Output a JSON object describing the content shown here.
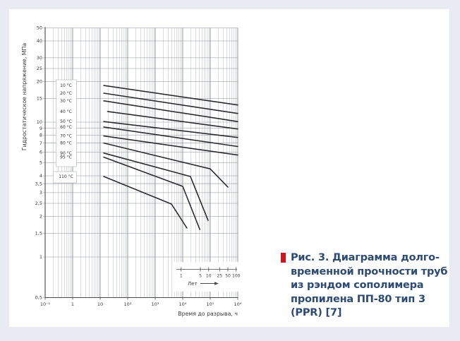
{
  "page": {
    "background": "#e9ebf2",
    "panel_background": "#ffffff"
  },
  "caption": {
    "bullet_color": "#ce1421",
    "text_color": "#2d4b75",
    "lines": [
      "Рис. 3. Диаграмма долго-",
      "временной прочности труб",
      "из рэндом сополимера",
      "пропилена ПП-80 тип 3",
      "(PPR) [7]"
    ]
  },
  "chart_data": {
    "type": "line",
    "title": "Диаграмма долговременной прочности труб из рэндом сополимера пропилена ПП-80 тип 3 (PPR)",
    "xlabel": "Время до разрыва, ч",
    "ylabel": "Гидростатическое напряжение, МПа",
    "x_scale": "log",
    "y_scale": "log",
    "xlim_log10_hours": [
      -1,
      6
    ],
    "ylim_mpa": [
      0.5,
      50
    ],
    "x_ticks_log10": [
      -1,
      0,
      1,
      2,
      3,
      4,
      5,
      6
    ],
    "x_tick_labels": [
      "10⁻¹",
      "1",
      "10",
      "10²",
      "10³",
      "10⁴",
      "10⁵",
      "10⁶"
    ],
    "y_ticks": [
      50,
      40,
      30,
      25,
      20,
      15,
      10,
      9,
      8,
      7,
      6,
      5,
      4,
      3.5,
      3,
      2.5,
      2,
      1.5,
      1,
      0.5
    ],
    "y_tick_labels": [
      "50",
      "40",
      "30",
      "25",
      "20",
      "15",
      "10",
      "9",
      "8",
      "7",
      "6",
      "5",
      "4",
      "3,5",
      "3",
      "2,5",
      "2",
      "1,5",
      "1",
      "0,5"
    ],
    "grid": true,
    "legend_position": "left-inside-boxes",
    "years_scale": {
      "label": "Лет",
      "ticks": [
        1,
        5,
        10,
        25,
        50,
        100
      ],
      "hours_per_year": 8760
    },
    "series": [
      {
        "label": "10 °C",
        "points_log10h_mpa": [
          [
            1.13,
            18.7
          ],
          [
            6.0,
            13.4
          ]
        ]
      },
      {
        "label": "20 °C",
        "points_log10h_mpa": [
          [
            1.13,
            16.4
          ],
          [
            6.0,
            11.6
          ]
        ]
      },
      {
        "label": "30 °C",
        "points_log10h_mpa": [
          [
            1.13,
            14.4
          ],
          [
            6.0,
            10.1
          ]
        ]
      },
      {
        "label": "40 °C",
        "points_log10h_mpa": [
          [
            1.27,
            12.0
          ],
          [
            6.0,
            8.9
          ]
        ]
      },
      {
        "label": "50 °C",
        "points_log10h_mpa": [
          [
            1.13,
            10.1
          ],
          [
            6.0,
            7.7
          ]
        ]
      },
      {
        "label": "60 °C",
        "points_log10h_mpa": [
          [
            1.13,
            9.2
          ],
          [
            6.0,
            6.6
          ]
        ]
      },
      {
        "label": "70 °C",
        "points_log10h_mpa": [
          [
            1.13,
            7.9
          ],
          [
            6.0,
            5.7
          ]
        ]
      },
      {
        "label": "80 °C",
        "points_log10h_mpa": [
          [
            1.13,
            7.0
          ],
          [
            5.0,
            4.5
          ],
          [
            5.64,
            3.3
          ]
        ]
      },
      {
        "label": "90 °C",
        "points_log10h_mpa": [
          [
            1.13,
            5.9
          ],
          [
            4.28,
            3.95
          ],
          [
            4.92,
            1.87
          ]
        ]
      },
      {
        "label": "95 °C",
        "points_log10h_mpa": [
          [
            1.13,
            5.5
          ],
          [
            4.0,
            3.34
          ],
          [
            4.62,
            1.6
          ]
        ]
      },
      {
        "label": "110 °C",
        "points_log10h_mpa": [
          [
            1.13,
            3.95
          ],
          [
            3.59,
            2.47
          ],
          [
            4.15,
            1.64
          ]
        ]
      }
    ],
    "colors": {
      "curve": "#2c2c30",
      "grid_minor": "#bcc0c7",
      "grid_major": "#8d929b",
      "axis": "#4a4a4e",
      "text": "#3a3a3e",
      "box_border": "#9aa0a8"
    }
  }
}
